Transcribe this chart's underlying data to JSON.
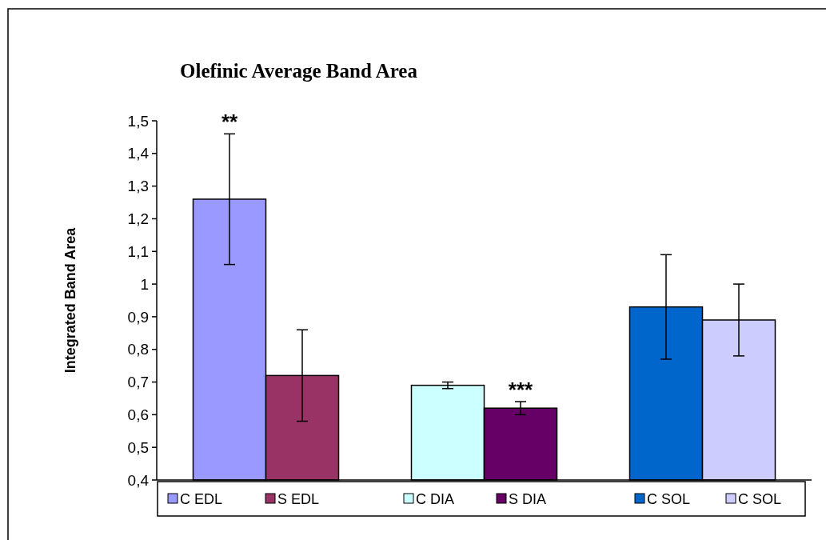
{
  "chart_data": {
    "type": "bar",
    "title": "Olefinic Average Band Area",
    "ylabel": "Integrated Band Area",
    "categories": [
      null,
      null,
      null
    ],
    "series": [
      {
        "name": "C EDL",
        "color": "#9999ff",
        "values": [
          1.26,
          null,
          null
        ],
        "errors": [
          0.2,
          null,
          null
        ],
        "value_labels": [
          "**",
          null,
          null
        ]
      },
      {
        "name": "S EDL",
        "color": "#993366",
        "values": [
          0.72,
          null,
          null
        ],
        "errors": [
          0.14,
          null,
          null
        ]
      },
      {
        "name": "C DIA",
        "color": "#ccffff",
        "values": [
          null,
          0.69,
          null
        ],
        "errors": [
          null,
          0.01,
          null
        ]
      },
      {
        "name": "S DIA",
        "color": "#660066",
        "values": [
          null,
          0.62,
          null
        ],
        "errors": [
          null,
          0.02,
          null
        ],
        "value_labels": [
          null,
          "***",
          null
        ]
      },
      {
        "name": "C SOL",
        "color": "#0066cc",
        "values": [
          null,
          null,
          0.93
        ],
        "errors": [
          null,
          null,
          0.16
        ]
      },
      {
        "name": "C SOL",
        "color": "#ccccff",
        "values": [
          null,
          null,
          0.89
        ],
        "errors": [
          null,
          null,
          0.11
        ]
      }
    ],
    "ylim": [
      0.4,
      1.5
    ],
    "yticks": [
      {
        "value": 0.4,
        "label": "0,4"
      },
      {
        "value": 0.5,
        "label": "0,5"
      },
      {
        "value": 0.6,
        "label": "0,6"
      },
      {
        "value": 0.7,
        "label": "0,7"
      },
      {
        "value": 0.8,
        "label": "0,8"
      },
      {
        "value": 0.9,
        "label": "0,9"
      },
      {
        "value": 1,
        "label": "1"
      },
      {
        "value": 1.1,
        "label": "1,1"
      },
      {
        "value": 1.2,
        "label": "1,2"
      },
      {
        "value": 1.3,
        "label": "1,3"
      },
      {
        "value": 1.4,
        "label": "1,4"
      },
      {
        "value": 1.5,
        "label": "1,5"
      }
    ],
    "grid": false,
    "legend": "bottom"
  }
}
